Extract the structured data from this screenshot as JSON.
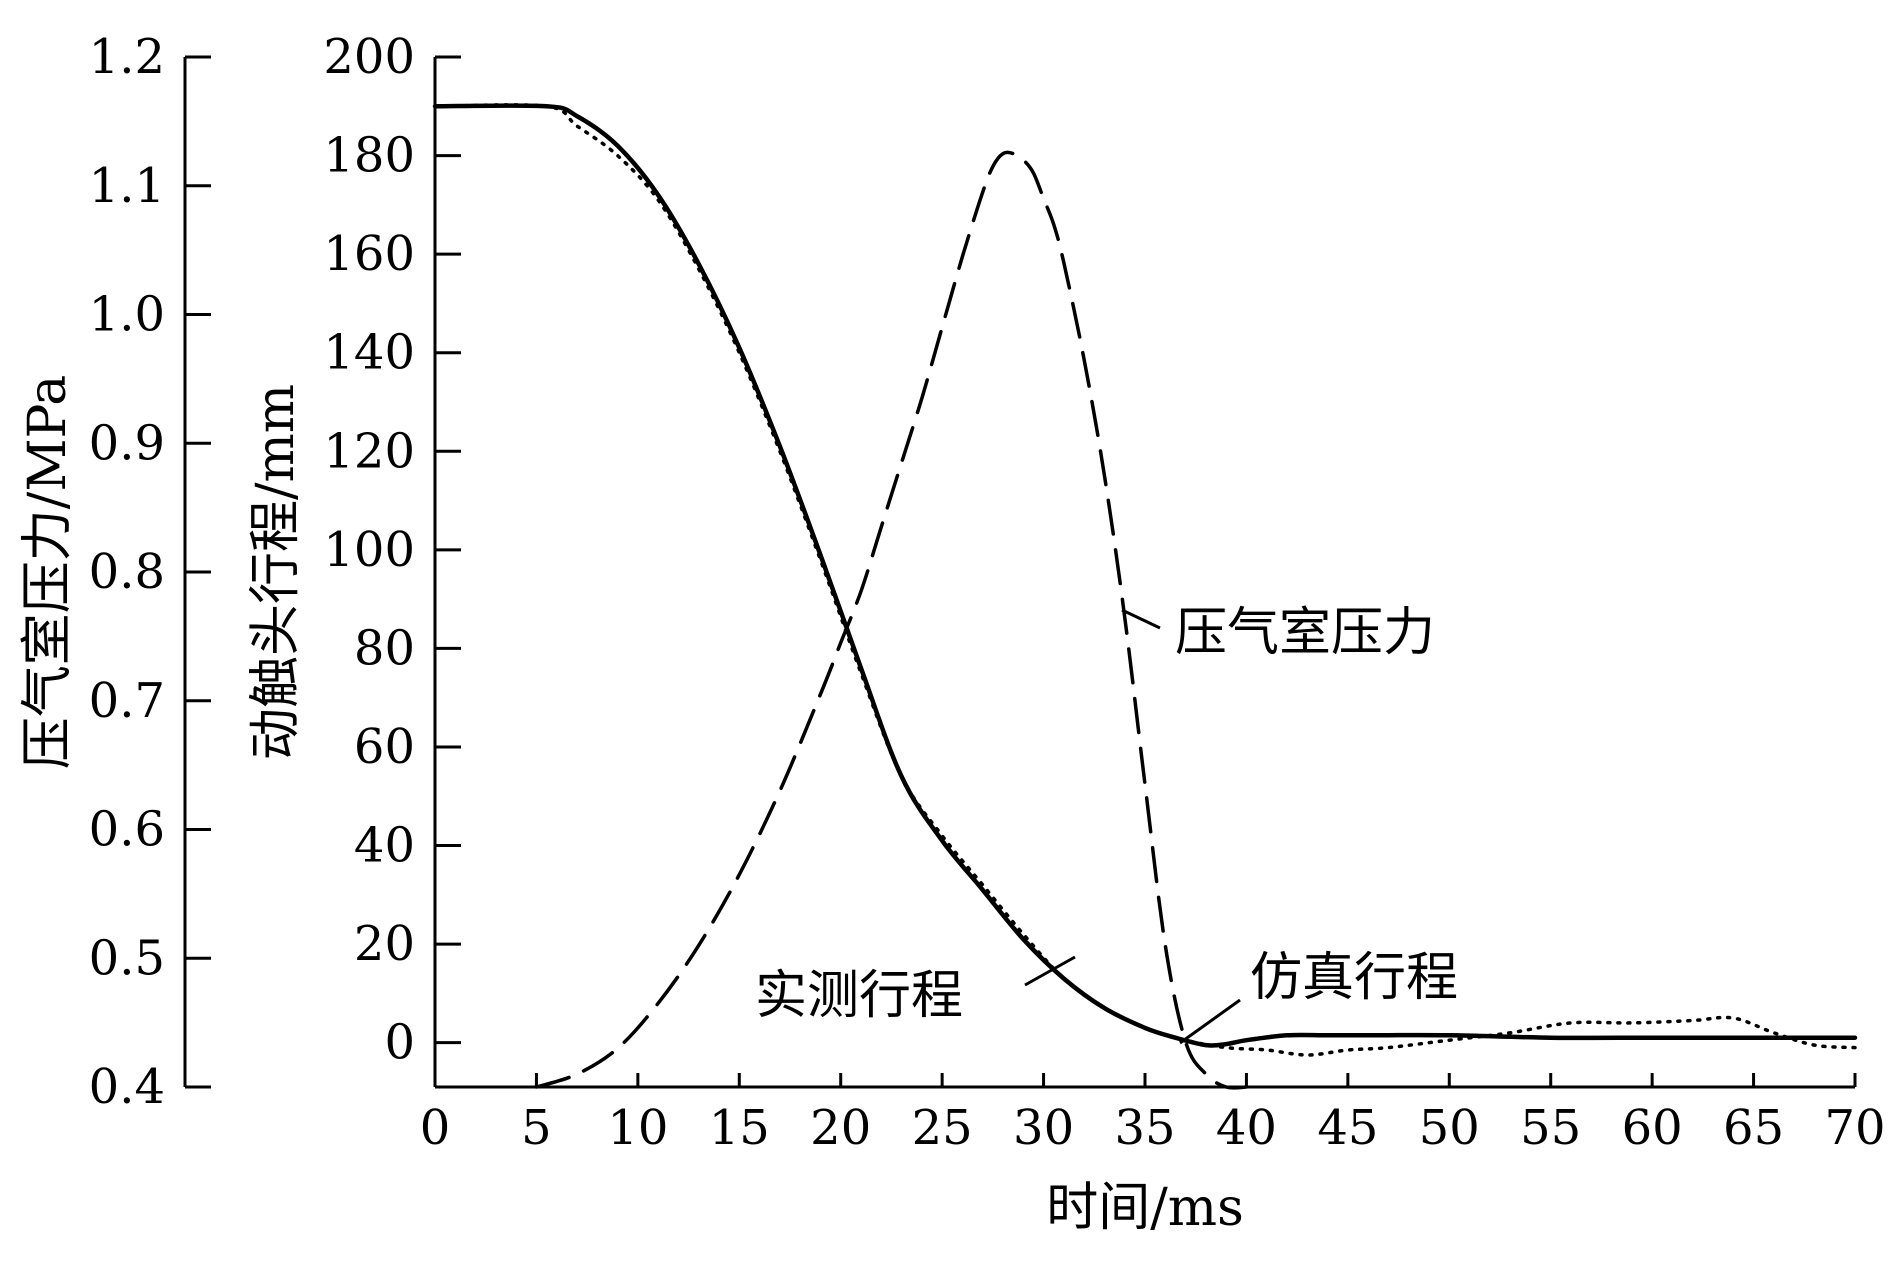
{
  "chart_data": {
    "type": "line",
    "xlabel": "时间/ms",
    "ylabel_left": "压气室压力/MPa",
    "ylabel_right": "动触头行程/mm",
    "xlim": [
      0,
      70
    ],
    "ylim_stroke": [
      -9,
      200
    ],
    "ylim_pressure": [
      0.4,
      1.2
    ],
    "x_ticks": [
      "0",
      "5",
      "10",
      "15",
      "20",
      "25",
      "30",
      "35",
      "40",
      "45",
      "50",
      "55",
      "60",
      "65",
      "70"
    ],
    "stroke_ticks": [
      "0",
      "20",
      "40",
      "60",
      "80",
      "100",
      "120",
      "140",
      "160",
      "180",
      "200"
    ],
    "pressure_ticks": [
      "0.4",
      "0.5",
      "0.6",
      "0.7",
      "0.8",
      "0.9",
      "1.0",
      "1.1",
      "1.2"
    ],
    "grid": false,
    "series": [
      {
        "name": "仿真行程",
        "style": "solid",
        "axis": "stroke",
        "x": [
          0,
          5.5,
          7,
          9,
          11,
          13,
          15,
          17,
          19,
          21,
          23,
          25,
          27,
          29,
          31,
          33,
          35,
          36.5,
          38,
          39,
          40,
          42,
          44,
          46,
          50,
          55,
          60,
          65,
          70
        ],
        "y": [
          190,
          190,
          188,
          182,
          172,
          158,
          141,
          121,
          99,
          76,
          54,
          41,
          31,
          21,
          13,
          7,
          3,
          1,
          -0.5,
          -0.3,
          0.5,
          1.5,
          1.5,
          1.5,
          1.5,
          1,
          1,
          1,
          1
        ]
      },
      {
        "name": "实测行程",
        "style": "dotted",
        "axis": "stroke",
        "x": [
          0,
          5.5,
          7,
          9,
          11,
          13,
          15,
          17,
          19,
          21,
          23,
          25,
          27,
          29,
          31,
          33,
          35,
          37,
          39,
          41,
          43,
          45,
          47,
          50,
          53,
          56,
          59,
          62,
          64,
          66,
          68,
          70
        ],
        "y": [
          190,
          190,
          186,
          180,
          171,
          157,
          140,
          120,
          98,
          75,
          54,
          42,
          32,
          22,
          13,
          7,
          3,
          0.5,
          -1,
          -1.5,
          -2.5,
          -1.5,
          -1,
          0.5,
          2,
          4,
          4,
          4.5,
          5,
          2,
          -0.5,
          -1
        ]
      },
      {
        "name": "压气室压力",
        "style": "dashed",
        "axis": "pressure",
        "x": [
          5,
          7,
          9,
          11,
          13,
          15,
          17,
          19,
          20,
          21,
          22,
          23,
          24,
          25,
          26,
          27,
          27.5,
          28,
          28.5,
          29,
          29.5,
          30,
          30.5,
          31,
          32,
          33,
          34,
          35,
          36,
          37,
          38,
          39,
          40
        ],
        "y": [
          0.4,
          0.41,
          0.43,
          0.465,
          0.51,
          0.565,
          0.63,
          0.705,
          0.745,
          0.785,
          0.835,
          0.885,
          0.935,
          0.99,
          1.045,
          1.095,
          1.115,
          1.125,
          1.125,
          1.12,
          1.11,
          1.09,
          1.07,
          1.04,
          0.965,
          0.875,
          0.765,
          0.635,
          0.51,
          0.435,
          0.41,
          0.4,
          0.4
        ]
      }
    ]
  },
  "annotations": {
    "pressure": "压气室压力",
    "measured": "实测行程",
    "simulated": "仿真行程"
  }
}
